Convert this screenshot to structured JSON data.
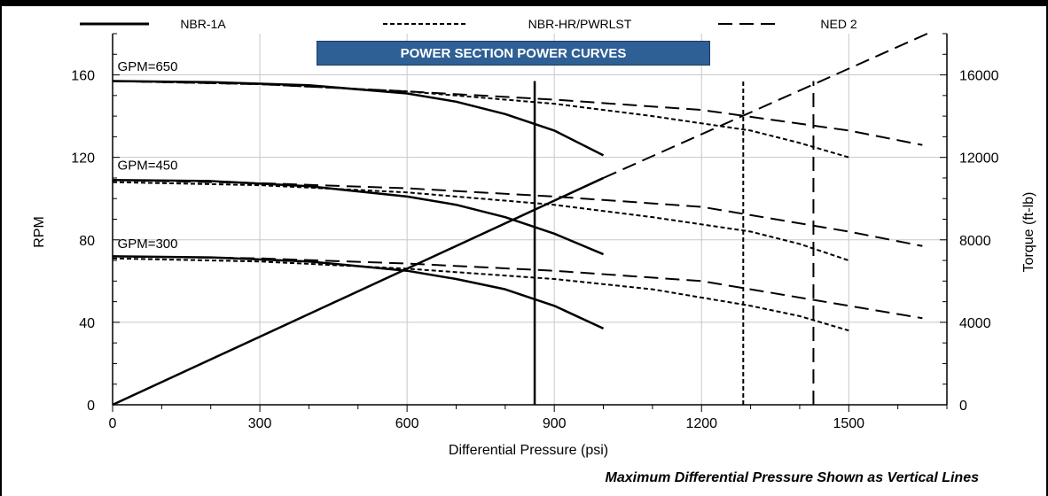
{
  "chart_data": {
    "type": "line",
    "title": "POWER SECTION POWER CURVES",
    "footnote": "Maximum Differential Pressure Shown as Vertical Lines",
    "xlabel": "Differential Pressure (psi)",
    "ylabel": "RPM",
    "y2label": "Torque (ft-lb)",
    "xlim": [
      0,
      1700
    ],
    "ylim": [
      0,
      180
    ],
    "y2lim": [
      0,
      18000
    ],
    "xticks": [
      0,
      300,
      600,
      900,
      1200,
      1500
    ],
    "yticks": [
      0,
      40,
      80,
      120,
      160
    ],
    "y2ticks": [
      0,
      4000,
      8000,
      12000,
      16000
    ],
    "grid": true,
    "legend_position": "top",
    "legend": [
      {
        "name": "NBR-1A",
        "style": "solid"
      },
      {
        "name": "NBR-HR/PWRLST",
        "style": "dotted"
      },
      {
        "name": "NED 2",
        "style": "dashed"
      }
    ],
    "gpm_labels": [
      {
        "text": "GPM=650",
        "x": 10,
        "y": 162
      },
      {
        "text": "GPM=450",
        "x": 10,
        "y": 114
      },
      {
        "text": "GPM=300",
        "x": 10,
        "y": 76
      }
    ],
    "series": [
      {
        "name": "NBR-1A",
        "gpm": 650,
        "axis": "left",
        "style": "solid",
        "x": [
          0,
          200,
          400,
          600,
          700,
          800,
          900,
          1000
        ],
        "y": [
          157,
          156.5,
          155,
          151,
          147,
          141,
          133,
          121
        ]
      },
      {
        "name": "NBR-1A",
        "gpm": 450,
        "axis": "left",
        "style": "solid",
        "x": [
          0,
          200,
          400,
          600,
          700,
          800,
          900,
          1000
        ],
        "y": [
          109,
          108.5,
          106,
          101,
          97,
          91,
          83,
          73
        ]
      },
      {
        "name": "NBR-1A",
        "gpm": 300,
        "axis": "left",
        "style": "solid",
        "x": [
          0,
          200,
          400,
          600,
          700,
          800,
          900,
          1000
        ],
        "y": [
          72,
          71.5,
          69.5,
          65,
          61,
          56,
          48,
          37
        ]
      },
      {
        "name": "NBR-HR/PWRLST",
        "gpm": 650,
        "axis": "left",
        "style": "dotted",
        "x": [
          0,
          300,
          600,
          900,
          1100,
          1300,
          1400,
          1500
        ],
        "y": [
          157,
          155.5,
          152,
          146,
          140,
          133,
          127,
          120
        ]
      },
      {
        "name": "NBR-HR/PWRLST",
        "gpm": 450,
        "axis": "left",
        "style": "dotted",
        "x": [
          0,
          300,
          600,
          900,
          1100,
          1300,
          1400,
          1500
        ],
        "y": [
          108,
          106.5,
          103,
          97,
          91,
          84,
          78,
          70
        ]
      },
      {
        "name": "NBR-HR/PWRLST",
        "gpm": 300,
        "axis": "left",
        "style": "dotted",
        "x": [
          0,
          300,
          600,
          900,
          1100,
          1300,
          1400,
          1500
        ],
        "y": [
          71,
          69.5,
          66,
          61,
          56,
          48,
          43,
          36
        ]
      },
      {
        "name": "NED 2",
        "gpm": 650,
        "axis": "left",
        "style": "dashed",
        "x": [
          0,
          300,
          600,
          900,
          1200,
          1500,
          1650
        ],
        "y": [
          157,
          155.5,
          152,
          148,
          143,
          133,
          126
        ]
      },
      {
        "name": "NED 2",
        "gpm": 450,
        "axis": "left",
        "style": "dashed",
        "x": [
          0,
          300,
          600,
          900,
          1200,
          1500,
          1650
        ],
        "y": [
          109,
          107.5,
          105,
          101,
          96,
          84,
          77
        ]
      },
      {
        "name": "NED 2",
        "gpm": 300,
        "axis": "left",
        "style": "dashed",
        "x": [
          0,
          300,
          600,
          900,
          1200,
          1500,
          1650
        ],
        "y": [
          72,
          71,
          68.5,
          65,
          60,
          48,
          42
        ]
      },
      {
        "name": "NBR-1A",
        "kind": "torque",
        "axis": "right",
        "style": "solid",
        "x": [
          0,
          1000
        ],
        "y": [
          0,
          11000
        ]
      },
      {
        "name": "NED 2",
        "kind": "torque",
        "axis": "right",
        "style": "dashed",
        "x": [
          1000,
          1660
        ],
        "y": [
          11000,
          18000
        ]
      }
    ],
    "max_pressure_lines": [
      {
        "name": "NBR-1A",
        "x": 860,
        "style": "solid",
        "ytop": 157
      },
      {
        "name": "NBR-HR/PWRLST",
        "x": 1285,
        "style": "dotted",
        "ytop": 157
      },
      {
        "name": "NED 2",
        "x": 1428,
        "style": "dashed",
        "ytop": 157
      }
    ]
  }
}
